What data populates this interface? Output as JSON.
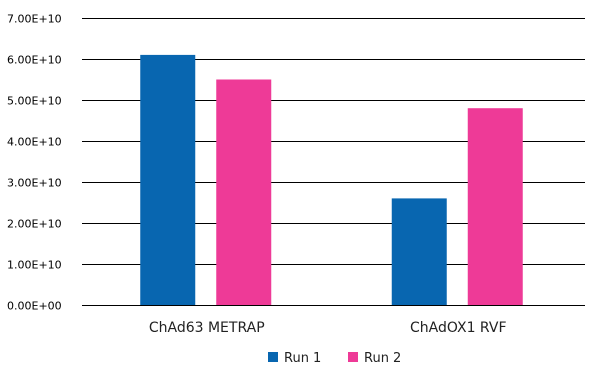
{
  "chart_data": {
    "type": "bar",
    "title": "",
    "xlabel": "",
    "ylabel": "",
    "categories": [
      "ChAd63 METRAP",
      "ChAdOX1 RVF"
    ],
    "series": [
      {
        "name": "Run 1",
        "color": "#0866b0",
        "values": [
          61000000000.0,
          26000000000.0
        ]
      },
      {
        "name": "Run 2",
        "color": "#ee3a97",
        "values": [
          55000000000.0,
          48000000000.0
        ]
      }
    ],
    "ylim": [
      0,
      70000000000.0
    ],
    "yticks": [
      0,
      10000000000.0,
      20000000000.0,
      30000000000.0,
      40000000000.0,
      50000000000.0,
      60000000000.0,
      70000000000.0
    ],
    "ytick_labels": [
      "0.00E+00",
      "1.00E+10",
      "2.00E+10",
      "3.00E+10",
      "4.00E+10",
      "5.00E+10",
      "6.00E+10",
      "7.00E+10"
    ],
    "grid": true,
    "legend": "bottom"
  }
}
